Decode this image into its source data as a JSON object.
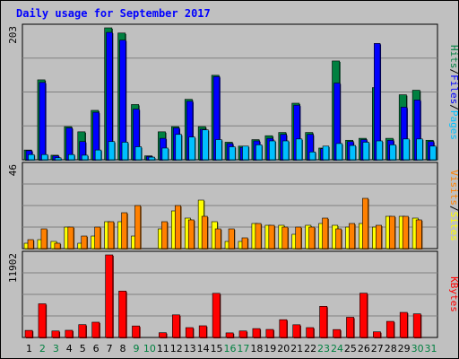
{
  "chart_data": {
    "type": "bar",
    "title": "Daily usage for September 2017",
    "days": [
      "1",
      "2",
      "3",
      "4",
      "5",
      "6",
      "7",
      "8",
      "9",
      "10",
      "11",
      "12",
      "13",
      "14",
      "15",
      "16",
      "17",
      "18",
      "19",
      "20",
      "21",
      "22",
      "23",
      "24",
      "25",
      "26",
      "27",
      "28",
      "29",
      "30",
      "31"
    ],
    "weekend_days": [
      "2",
      "3",
      "9",
      "10",
      "16",
      "17",
      "23",
      "24",
      "30",
      "31"
    ],
    "colors": {
      "hits": "#008040",
      "files": "#0000ff",
      "pages": "#00c0ff",
      "visits": "#ff8000",
      "sites": "#ffff00",
      "kbytes": "#ff0000",
      "weekday_label": "#000000",
      "weekend_label": "#008040",
      "title": "#0000ff"
    },
    "panels": [
      {
        "id": "hits_files_pages",
        "scale_max_label": "203",
        "ymax": 203,
        "legend": [
          {
            "text": "Hits",
            "color": "#008040"
          },
          {
            "text": "/",
            "color": "#000000"
          },
          {
            "text": "Files",
            "color": "#0000ff"
          },
          {
            "text": "/",
            "color": "#000000"
          },
          {
            "text": "Pages",
            "color": "#00c0ff"
          }
        ],
        "series": [
          {
            "name": "Hits",
            "color": "#008040",
            "values": [
              15,
              123,
              7,
              51,
              43,
              76,
              203,
              195,
              85,
              6,
              43,
              51,
              93,
              51,
              130,
              27,
              21,
              31,
              37,
              42,
              87,
              42,
              18,
              152,
              30,
              33,
              111,
              33,
              100,
              107,
              30
            ]
          },
          {
            "name": "Files",
            "color": "#0000ff",
            "values": [
              14,
              119,
              6,
              49,
              28,
              73,
              196,
              184,
              78,
              5,
              33,
              49,
              90,
              47,
              128,
              25,
              19,
              29,
              33,
              39,
              84,
              39,
              17,
              118,
              28,
              31,
              179,
              30,
              81,
              92,
              28
            ]
          },
          {
            "name": "Pages",
            "color": "#00c0ff",
            "values": [
              8,
              8,
              3,
              8,
              7,
              15,
              28,
              27,
              20,
              4,
              18,
              39,
              35,
              46,
              31,
              20,
              21,
              23,
              29,
              29,
              32,
              12,
              21,
              25,
              22,
              27,
              29,
              23,
              32,
              32,
              21
            ]
          }
        ]
      },
      {
        "id": "visits_sites",
        "scale_max_label": "46",
        "ymax": 46,
        "legend": [
          {
            "text": "Visits",
            "color": "#ff8000"
          },
          {
            "text": "/",
            "color": "#000000"
          },
          {
            "text": "Sites",
            "color": "#ffff00"
          }
        ],
        "series": [
          {
            "name": "Sites",
            "color": "#ffff00",
            "values": [
              3,
              5,
              4,
              12,
              3,
              7,
              15,
              15,
              7,
              0,
              11,
              21,
              17,
              27,
              15,
              4,
              4,
              14,
              13,
              13,
              8,
              13,
              14,
              13,
              12,
              14,
              12,
              18,
              18,
              17,
              0
            ]
          },
          {
            "name": "Visits",
            "color": "#ff8000",
            "values": [
              5,
              11,
              3,
              12,
              7,
              12,
              15,
              20,
              24,
              0,
              15,
              24,
              16,
              18,
              11,
              11,
              6,
              14,
              13,
              12,
              12,
              12,
              17,
              11,
              14,
              28,
              13,
              18,
              18,
              16,
              0
            ]
          }
        ]
      },
      {
        "id": "kbytes",
        "scale_max_label": "11902",
        "ymax": 11902,
        "legend": [
          {
            "text": "KBytes",
            "color": "#ff0000"
          }
        ],
        "series": [
          {
            "name": "KBytes",
            "color": "#ff0000",
            "values": [
              1021,
              4853,
              938,
              1037,
              1851,
              2202,
              11902,
              6690,
              1658,
              0,
              684,
              3257,
              1420,
              1685,
              6364,
              661,
              938,
              1280,
              1159,
              2565,
              1833,
              1420,
              4488,
              1143,
              2913,
              6386,
              811,
              2321,
              3618,
              3405,
              0
            ]
          }
        ]
      }
    ]
  }
}
